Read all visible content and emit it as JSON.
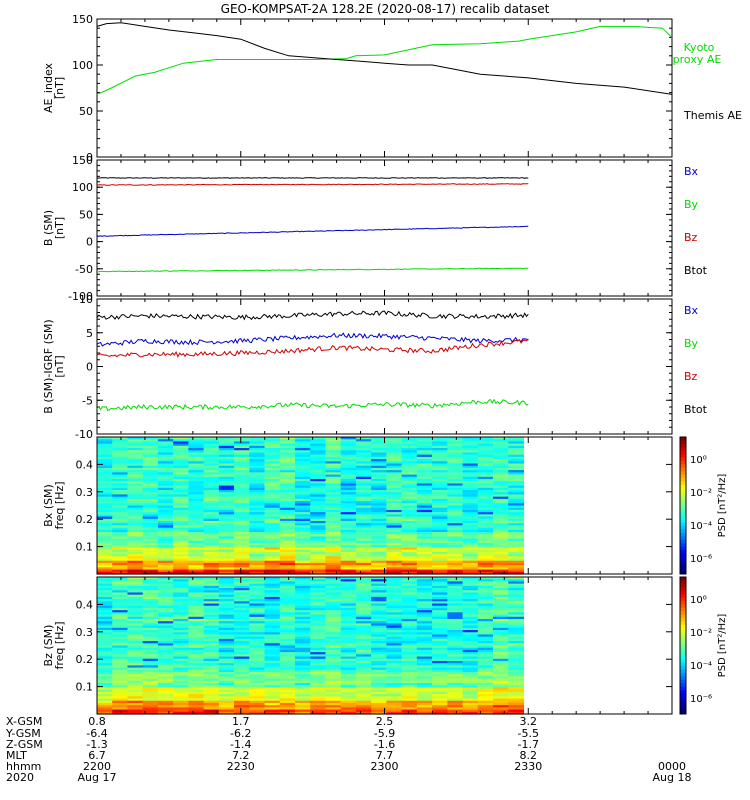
{
  "title": "GEO-KOMPSAT-2A 128.2E (2020-08-17) recalib dataset",
  "colors": {
    "black": "#000000",
    "green": "#00dd00",
    "blue": "#0000cc",
    "red": "#cc0000"
  },
  "chart_data": [
    {
      "type": "line",
      "id": "ae",
      "ylabel_lines": [
        "AE_index",
        "[nT]"
      ],
      "ylim": [
        0,
        150
      ],
      "yticks": [
        0,
        50,
        100,
        150
      ],
      "xlim": [
        0,
        120
      ],
      "legend": [
        "Kyoto",
        "proxy AE",
        "Themis AE"
      ],
      "series": [
        {
          "name": "Kyoto proxy AE",
          "color": "#00dd00",
          "x": [
            0,
            3,
            8,
            12,
            18,
            25,
            35,
            45,
            52,
            54,
            60,
            70,
            80,
            88,
            90,
            100,
            105,
            112,
            118,
            120
          ],
          "y": [
            68,
            75,
            88,
            92,
            102,
            106,
            106,
            106,
            107,
            110,
            111,
            122,
            123,
            126,
            128,
            136,
            142,
            142,
            140,
            130
          ]
        },
        {
          "name": "Themis AE",
          "color": "#000000",
          "x": [
            0,
            2,
            5,
            10,
            15,
            20,
            25,
            30,
            35,
            40,
            45,
            50,
            55,
            60,
            65,
            70,
            75,
            80,
            90,
            100,
            110,
            120
          ],
          "y": [
            142,
            145,
            146,
            142,
            138,
            135,
            132,
            128,
            118,
            110,
            108,
            106,
            104,
            102,
            100,
            100,
            95,
            90,
            86,
            80,
            76,
            68
          ]
        }
      ]
    },
    {
      "type": "line",
      "id": "bsm",
      "ylabel_lines": [
        "B (SM)",
        "[nT]"
      ],
      "ylim": [
        -100,
        150
      ],
      "yticks": [
        -100,
        -50,
        0,
        50,
        100,
        150
      ],
      "xlim": [
        0,
        120
      ],
      "legend": [
        "Bx",
        "By",
        "Bz",
        "Btot"
      ],
      "series": [
        {
          "name": "Btot",
          "color": "#000000",
          "x": [
            0,
            90
          ],
          "y": [
            117,
            117
          ]
        },
        {
          "name": "Bz",
          "color": "#cc0000",
          "x": [
            0,
            90
          ],
          "y": [
            104,
            106
          ]
        },
        {
          "name": "Bx",
          "color": "#0000cc",
          "x": [
            0,
            90
          ],
          "y": [
            10,
            28
          ]
        },
        {
          "name": "By",
          "color": "#00dd00",
          "x": [
            0,
            90
          ],
          "y": [
            -55,
            -49
          ]
        }
      ]
    },
    {
      "type": "line",
      "id": "bsm-igrf",
      "ylabel_lines": [
        "B (SM)-IGRF (SM)",
        "[nT]"
      ],
      "ylim": [
        -10,
        10
      ],
      "yticks": [
        -10,
        -5,
        0,
        5,
        10
      ],
      "xlim": [
        0,
        120
      ],
      "legend": [
        "Bx",
        "By",
        "Bz",
        "Btot"
      ],
      "series": [
        {
          "name": "Btot",
          "color": "#000000",
          "x": [
            0,
            10,
            20,
            30,
            40,
            50,
            60,
            70,
            80,
            90
          ],
          "y": [
            7.3,
            7.5,
            7.4,
            7.3,
            7.5,
            7.8,
            7.9,
            7.5,
            7.4,
            7.6
          ]
        },
        {
          "name": "Bx",
          "color": "#0000cc",
          "x": [
            0,
            10,
            20,
            30,
            40,
            50,
            60,
            70,
            80,
            90
          ],
          "y": [
            3.2,
            3.8,
            3.6,
            3.8,
            4.2,
            4.6,
            4.5,
            4.2,
            3.8,
            4.0
          ]
        },
        {
          "name": "Bz",
          "color": "#cc0000",
          "x": [
            0,
            10,
            20,
            30,
            40,
            50,
            60,
            70,
            80,
            90
          ],
          "y": [
            1.5,
            1.8,
            1.8,
            2.0,
            2.3,
            2.8,
            2.5,
            2.3,
            3.2,
            3.8
          ]
        },
        {
          "name": "By",
          "color": "#00dd00",
          "x": [
            0,
            10,
            20,
            30,
            40,
            50,
            60,
            70,
            80,
            90
          ],
          "y": [
            -6.3,
            -6.0,
            -6.0,
            -6.0,
            -5.7,
            -5.9,
            -5.6,
            -5.8,
            -5.2,
            -5.4
          ]
        }
      ]
    },
    {
      "type": "heatmap",
      "id": "bx-spec",
      "ylabel_lines": [
        "Bx (SM)",
        "freq [Hz]"
      ],
      "ylim": [
        0,
        0.5
      ],
      "yticks": [
        0.1,
        0.2,
        0.3,
        0.4
      ],
      "xlim": [
        0,
        120
      ],
      "data_xmax": 89,
      "colorbar_label": "PSD [nT²/Hz]",
      "colorbar_ticks": [
        "10⁰",
        "10⁻²",
        "10⁻⁴",
        "10⁻⁶"
      ]
    },
    {
      "type": "heatmap",
      "id": "bz-spec",
      "ylabel_lines": [
        "Bz (SM)",
        "freq [Hz]"
      ],
      "ylim": [
        0,
        0.5
      ],
      "yticks": [
        0.1,
        0.2,
        0.3,
        0.4
      ],
      "xlim": [
        0,
        120
      ],
      "data_xmax": 89,
      "colorbar_label": "PSD [nT²/Hz]",
      "colorbar_ticks": [
        "10⁰",
        "10⁻²",
        "10⁻⁴",
        "10⁻⁶"
      ]
    }
  ],
  "orbit": {
    "labels": [
      "X-GSM",
      "Y-GSM",
      "Z-GSM",
      "MLT",
      "hhmm",
      "2020"
    ],
    "columns": [
      {
        "x": 0,
        "values": [
          "0.8",
          "-6.4",
          "-1.3",
          "6.7",
          "2200",
          "Aug 17"
        ]
      },
      {
        "x": 30,
        "values": [
          "1.7",
          "-6.2",
          "-1.4",
          "7.2",
          "2230",
          ""
        ]
      },
      {
        "x": 60,
        "values": [
          "2.5",
          "-5.9",
          "-1.6",
          "7.7",
          "2300",
          ""
        ]
      },
      {
        "x": 90,
        "values": [
          "3.2",
          "-5.5",
          "-1.7",
          "8.2",
          "2330",
          ""
        ]
      },
      {
        "x": 120,
        "values": [
          "",
          "",
          "",
          "",
          "0000",
          "Aug 18"
        ]
      }
    ]
  }
}
